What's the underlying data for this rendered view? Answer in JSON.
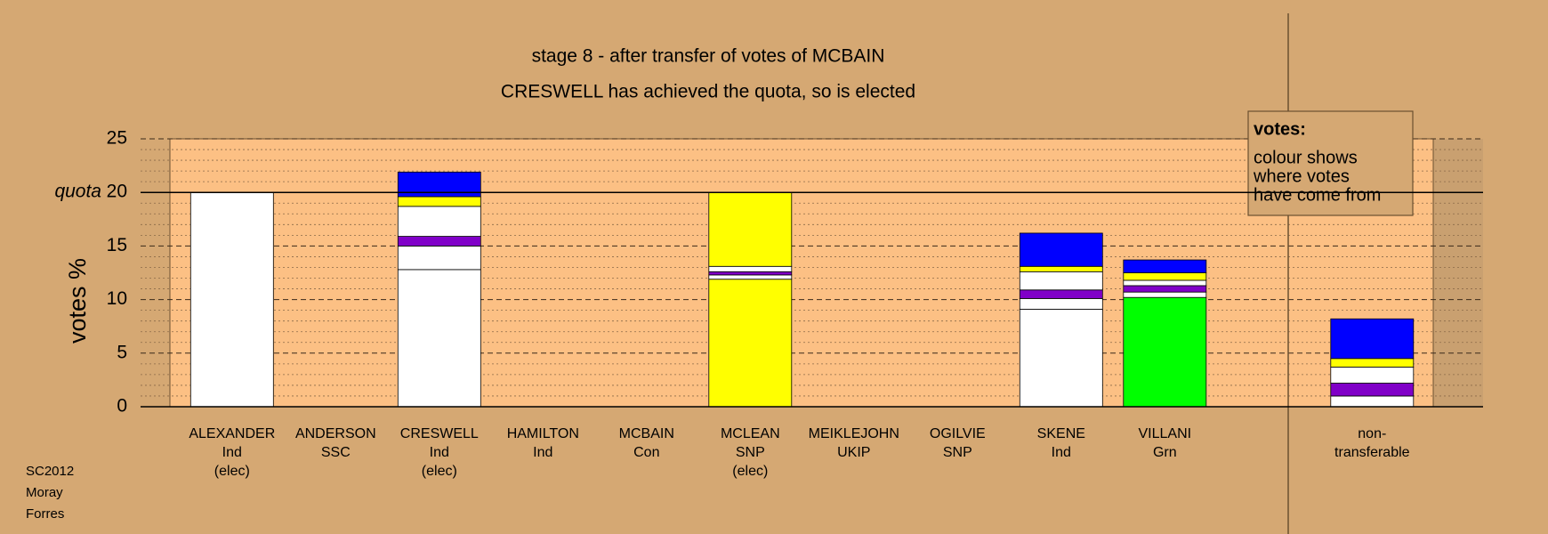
{
  "chart_data": {
    "type": "stacked-bar",
    "title": "stage 8 - after transfer of votes of MCBAIN",
    "subtitle": "CRESWELL has achieved the quota, so is elected",
    "y_label": "votes %",
    "quota": 20,
    "quota_label": "quota",
    "ylim": [
      0,
      25
    ],
    "yticks": [
      0,
      5,
      10,
      15,
      20,
      25
    ],
    "minor_yticks": [
      1,
      2,
      3,
      4,
      6,
      7,
      8,
      9,
      11,
      12,
      13,
      14,
      16,
      17,
      18,
      19,
      21,
      22,
      23,
      24
    ],
    "bars": [
      {
        "label": [
          "ALEXANDER",
          "Ind",
          "(elec)"
        ],
        "segments": [
          {
            "color": "#ffffff",
            "value": 20
          }
        ]
      },
      {
        "label": [
          "ANDERSON",
          "SSC"
        ],
        "segments": []
      },
      {
        "label": [
          "CRESWELL",
          "Ind",
          "(elec)"
        ],
        "segments": [
          {
            "color": "#ffffff",
            "value": 12.8
          },
          {
            "color": "#ffffff",
            "value": 2.2
          },
          {
            "color": "#8000c8",
            "value": 0.9
          },
          {
            "color": "#ffffff",
            "value": 2.8
          },
          {
            "color": "#ffff00",
            "value": 0.9
          },
          {
            "color": "#0000ff",
            "value": 2.3
          }
        ]
      },
      {
        "label": [
          "HAMILTON",
          "Ind"
        ],
        "segments": []
      },
      {
        "label": [
          "MCBAIN",
          "Con"
        ],
        "segments": []
      },
      {
        "label": [
          "MCLEAN",
          "SNP",
          "(elec)"
        ],
        "segments": [
          {
            "color": "#ffff00",
            "value": 11.9
          },
          {
            "color": "#ffffff",
            "value": 0.4
          },
          {
            "color": "#8000c8",
            "value": 0.3
          },
          {
            "color": "#ffffff",
            "value": 0.5
          },
          {
            "color": "#ffff00",
            "value": 6.9
          }
        ]
      },
      {
        "label": [
          "MEIKLEJOHN",
          "UKIP"
        ],
        "segments": []
      },
      {
        "label": [
          "OGILVIE",
          "SNP"
        ],
        "segments": []
      },
      {
        "label": [
          "SKENE",
          "Ind"
        ],
        "segments": [
          {
            "color": "#ffffff",
            "value": 9.1
          },
          {
            "color": "#ffffff",
            "value": 1.0
          },
          {
            "color": "#8000c8",
            "value": 0.8
          },
          {
            "color": "#ffffff",
            "value": 1.7
          },
          {
            "color": "#ffff00",
            "value": 0.5
          },
          {
            "color": "#0000ff",
            "value": 3.1
          }
        ]
      },
      {
        "label": [
          "VILLANI",
          "Grn"
        ],
        "segments": [
          {
            "color": "#00ff00",
            "value": 10.2
          },
          {
            "color": "#ffffff",
            "value": 0.5
          },
          {
            "color": "#8000c8",
            "value": 0.6
          },
          {
            "color": "#ffffff",
            "value": 0.5
          },
          {
            "color": "#ffff00",
            "value": 0.7
          },
          {
            "color": "#0000ff",
            "value": 1.2
          }
        ]
      },
      {
        "label": [
          "non-",
          "transferable"
        ],
        "segments": [
          {
            "color": "#ffffff",
            "value": 1.0
          },
          {
            "color": "#8000c8",
            "value": 1.2
          },
          {
            "color": "#ffffff",
            "value": 1.5
          },
          {
            "color": "#ffff00",
            "value": 0.8
          },
          {
            "color": "#0000ff",
            "value": 3.7
          }
        ]
      }
    ],
    "legend_title": "votes:",
    "legend_lines": [
      "colour shows",
      "where votes",
      "have come from"
    ],
    "footer": [
      "SC2012",
      "Moray",
      "Forres"
    ]
  }
}
